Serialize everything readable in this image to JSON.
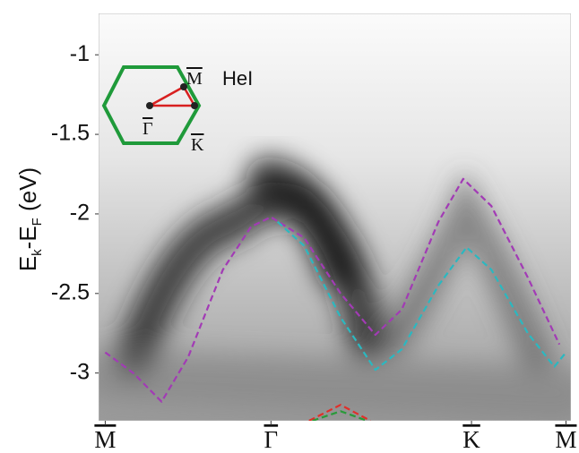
{
  "chart_data": {
    "type": "line",
    "y_label_parts": [
      "E",
      "k",
      "-E",
      "F",
      " (eV)"
    ],
    "inset_labels": {
      "m": "M",
      "gamma": "Γ",
      "k": "K",
      "source": "HeI"
    },
    "xlim": [
      -1.04,
      1.81
    ],
    "ylim": [
      -0.74,
      -3.3
    ],
    "xticks": [
      {
        "value": -1.0,
        "label": "M"
      },
      {
        "value": 0,
        "label": "Γ"
      },
      {
        "value": 1.21,
        "label": "K"
      },
      {
        "value": 1.78,
        "label": "M"
      }
    ],
    "yticks": [
      -1,
      -1.5,
      -2,
      -2.5,
      -3
    ],
    "series": [
      {
        "color": "#a23bb5",
        "x": [
          -1.0,
          -0.83,
          -0.66,
          -0.5,
          -0.29,
          -0.12,
          0,
          0.2,
          0.42,
          0.63,
          0.79,
          1.01,
          1.16,
          1.33,
          1.55,
          1.74
        ],
        "values": [
          -2.87,
          -3.0,
          -3.18,
          -2.9,
          -2.35,
          -2.08,
          -2.02,
          -2.15,
          -2.5,
          -2.76,
          -2.6,
          -2.05,
          -1.78,
          -1.95,
          -2.4,
          -2.82
        ]
      },
      {
        "color": "#2bb8c0",
        "x": [
          0.04,
          0.2,
          0.42,
          0.63,
          0.79,
          1.01,
          1.18,
          1.33,
          1.55,
          1.71,
          1.78
        ],
        "values": [
          -2.05,
          -2.2,
          -2.65,
          -2.98,
          -2.85,
          -2.45,
          -2.21,
          -2.35,
          -2.75,
          -2.96,
          -2.87
        ]
      },
      {
        "color": "#e0302a",
        "x": [
          0.23,
          0.42,
          0.6
        ],
        "values": [
          -3.3,
          -3.2,
          -3.3
        ]
      },
      {
        "color": "#2a9a3a",
        "x": [
          0.25,
          0.42,
          0.58
        ],
        "values": [
          -3.3,
          -3.24,
          -3.3
        ]
      }
    ]
  }
}
